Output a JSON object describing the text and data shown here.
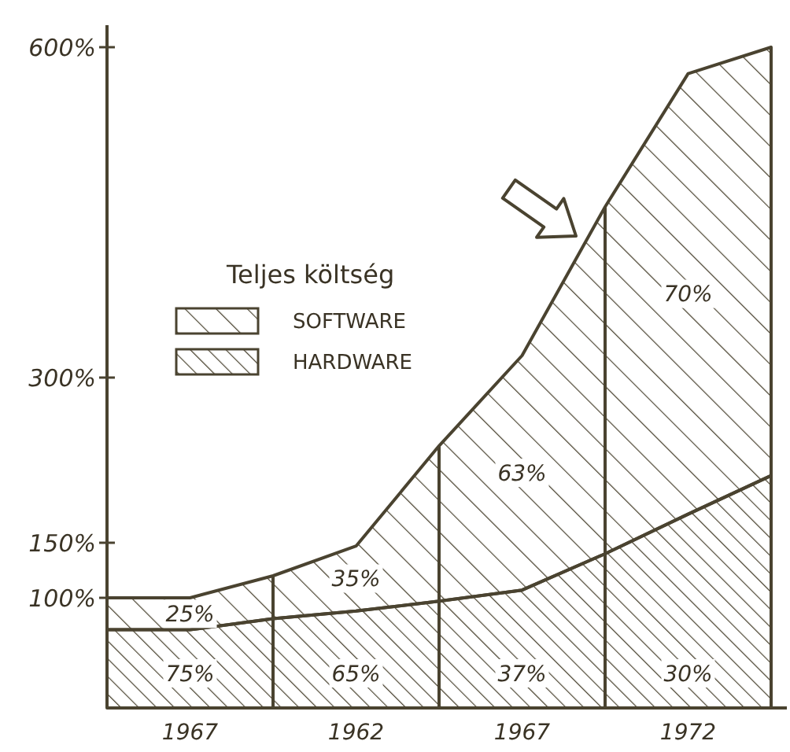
{
  "chart_data": {
    "type": "area",
    "stacked": true,
    "legend_title": "Teljes költség",
    "legend": "top left",
    "grid": "x",
    "categories": [
      null,
      "1967",
      null,
      "1962",
      null,
      "1967",
      null,
      "1972",
      null
    ],
    "ylim": [
      0,
      620
    ],
    "yticks": [
      {
        "value": 100,
        "label": "100%"
      },
      {
        "value": 150,
        "label": "150%"
      },
      {
        "value": 300,
        "label": "300%"
      },
      {
        "value": 600,
        "label": "600%"
      }
    ],
    "series": [
      {
        "name": "HARDWARE",
        "color": "#4a4330",
        "values": [
          71,
          71,
          81,
          88,
          97,
          107,
          140,
          176,
          211
        ]
      },
      {
        "name": "SOFTWARE",
        "color": "#4a4330",
        "values": [
          29,
          29,
          39,
          59,
          141,
          213,
          315,
          400,
          389
        ]
      }
    ],
    "annotations": [
      "25%",
      "75%",
      "35%",
      "65%",
      "63%",
      "37%",
      "70%",
      "30%"
    ]
  }
}
